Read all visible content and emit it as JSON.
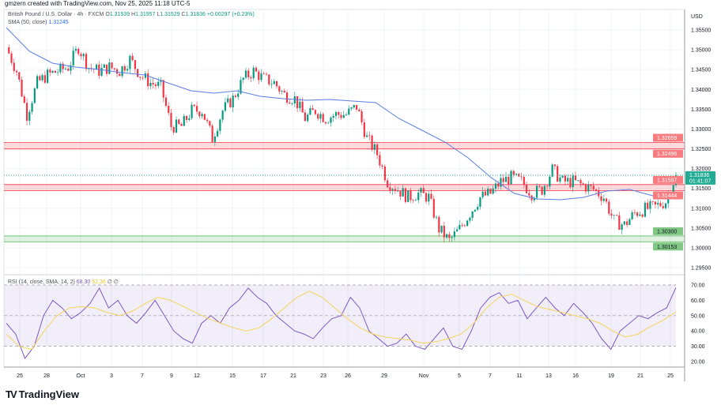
{
  "header": {
    "credit": "gmzern created with TradingView.com, Nov 25, 2025 11:18 UTC-5"
  },
  "legend": {
    "symbol": "British Pound / U.S. Dollar · 4h · FXCM",
    "o_label": "O",
    "o": "1.31539",
    "h_label": "H",
    "h": "1.31957",
    "l_label": "L",
    "l": "1.31529",
    "c_label": "C",
    "c": "1.31836",
    "change": "+0.00297 (+0.23%)",
    "sma_label": "SMA (50, close)",
    "sma_value": "1.31245",
    "rsi_label": "RSI (14, close, SMA, 14, 2)",
    "rsi_value": "68.30",
    "rsi_sma_value": "52.36",
    "rsi_extra": "∅ ∅"
  },
  "logo": {
    "text": "TradingView"
  },
  "colors": {
    "up": "#089981",
    "down": "#f23645",
    "sma": "#2962ff",
    "rsi": "#7e57c2",
    "rsi_sma": "#fdd835",
    "resistance": "#f23645",
    "support": "#4caf50",
    "last": "#22ab94"
  },
  "chart_data": [
    {
      "type": "candlestick",
      "title": "British Pound / U.S. Dollar · 4h · FXCM",
      "currency": "USD",
      "ylim": [
        1.2925,
        1.3575
      ],
      "yticks": [
        "1.35500",
        "1.35000",
        "1.34500",
        "1.34000",
        "1.33500",
        "1.33000",
        "1.32500",
        "1.32000",
        "1.31500",
        "1.31000",
        "1.30500",
        "1.30000",
        "1.29500"
      ],
      "xticks": [
        "25",
        "28",
        "Oct",
        "3",
        "7",
        "9",
        "12",
        "15",
        "17",
        "21",
        "23",
        "26",
        "29",
        "Nov",
        "5",
        "7",
        "11",
        "13",
        "16",
        "19",
        "21",
        "25"
      ],
      "grid": true,
      "close": [
        1.35062,
        1.34464,
        1.33367,
        1.34165,
        1.34364,
        1.34464,
        1.34563,
        1.35062,
        1.34563,
        1.34464,
        1.34563,
        1.34464,
        1.34763,
        1.34364,
        1.34165,
        1.34065,
        1.33068,
        1.33068,
        1.33467,
        1.33467,
        1.32769,
        1.33467,
        1.33766,
        1.34264,
        1.34464,
        1.34264,
        1.34165,
        1.33866,
        1.33766,
        1.33268,
        1.33467,
        1.33268,
        1.33367,
        1.33367,
        1.33567,
        1.32769,
        1.32371,
        1.31673,
        1.31474,
        1.31275,
        1.31374,
        1.31275,
        1.30477,
        1.30178,
        1.30477,
        1.30876,
        1.31275,
        1.31374,
        1.31673,
        1.31773,
        1.31673,
        1.31374,
        1.31474,
        1.31972,
        1.31673,
        1.31673,
        1.31574,
        1.31474,
        1.31275,
        1.30677,
        1.30577,
        1.30876,
        1.30976,
        1.31035,
        1.31175,
        1.31836
      ],
      "sma": {
        "name": "SMA (50, close)",
        "values": [
          1.3556,
          1.34962,
          1.34663,
          1.34563,
          1.34503,
          1.34424,
          1.34364,
          1.34165,
          1.33965,
          1.33906,
          1.33965,
          1.33826,
          1.33766,
          1.33726,
          1.33746,
          1.33706,
          1.33666,
          1.33268,
          1.32969,
          1.3267,
          1.32271,
          1.31773,
          1.31374,
          1.31235,
          1.31215,
          1.31275,
          1.31434,
          1.31474,
          1.31315,
          1.31245
        ]
      },
      "zones": [
        {
          "kind": "resistance",
          "top": 1.32659,
          "bottom": 1.32496,
          "top_label": "1.32659",
          "bottom_label": "1.32496"
        },
        {
          "kind": "resistance",
          "top": 1.31597,
          "bottom": 1.31444,
          "top_label": "1.31597",
          "bottom_label": "1.31444"
        },
        {
          "kind": "support",
          "top": 1.303,
          "bottom": 1.30153,
          "top_label": "1.30300",
          "bottom_label": "1.30153"
        }
      ],
      "last_price": {
        "value": 1.31836,
        "label": "1.31836",
        "countdown": "01:41:07"
      }
    },
    {
      "type": "line",
      "title": "RSI (14, close, SMA, 14, 2)",
      "ylim": [
        15,
        75
      ],
      "yticks": [
        "70.00",
        "60.00",
        "50.00",
        "40.00",
        "30.00",
        "20.00"
      ],
      "bands": [
        30,
        50,
        70
      ],
      "series": [
        {
          "name": "RSI",
          "values": [
            45,
            38,
            22,
            30,
            50,
            60,
            55,
            48,
            52,
            58,
            68,
            55,
            60,
            50,
            45,
            52,
            60,
            50,
            40,
            35,
            32,
            45,
            50,
            45,
            55,
            60,
            68,
            62,
            58,
            50,
            45,
            40,
            38,
            35,
            42,
            48,
            50,
            62,
            55,
            40,
            35,
            30,
            32,
            38,
            30,
            28,
            35,
            42,
            30,
            28,
            40,
            55,
            62,
            65,
            58,
            60,
            48,
            55,
            62,
            55,
            50,
            58,
            52,
            45,
            35,
            28,
            40,
            45,
            50,
            48,
            52,
            55,
            68.3
          ]
        },
        {
          "name": "SMA",
          "values": [
            38,
            30,
            28,
            40,
            50,
            55,
            56,
            55,
            52,
            50,
            53,
            58,
            62,
            60,
            56,
            52,
            48,
            45,
            42,
            40,
            42,
            48,
            55,
            62,
            66,
            62,
            55,
            48,
            42,
            38,
            36,
            35,
            34,
            32,
            33,
            35,
            38,
            45,
            55,
            62,
            64,
            60,
            56,
            54,
            52,
            50,
            48,
            45,
            40,
            36,
            38,
            43,
            47,
            52.36
          ]
        }
      ]
    }
  ]
}
